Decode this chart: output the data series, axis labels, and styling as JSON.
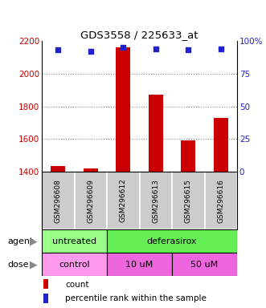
{
  "title": "GDS3558 / 225633_at",
  "samples": [
    "GSM296608",
    "GSM296609",
    "GSM296612",
    "GSM296613",
    "GSM296615",
    "GSM296616"
  ],
  "counts": [
    1435,
    1420,
    2160,
    1870,
    1590,
    1730
  ],
  "percentile_ranks": [
    93,
    92,
    95,
    94,
    93,
    94
  ],
  "ylim_left": [
    1400,
    2200
  ],
  "ylim_right": [
    0,
    100
  ],
  "right_ticks": [
    0,
    25,
    50,
    75,
    100
  ],
  "right_tick_labels": [
    "0",
    "25",
    "50",
    "75",
    "100%"
  ],
  "left_ticks": [
    1400,
    1600,
    1800,
    2000,
    2200
  ],
  "bar_color": "#cc0000",
  "dot_color": "#2222cc",
  "tick_color_left": "#cc0000",
  "tick_color_right": "#2222cc",
  "grid_color": "#888888",
  "sample_box_color": "#cccccc",
  "legend_count_color": "#cc0000",
  "legend_pct_color": "#2222cc",
  "agent_info": [
    {
      "start": 0,
      "end": 2,
      "label": "untreated",
      "color": "#99ff88"
    },
    {
      "start": 2,
      "end": 6,
      "label": "deferasirox",
      "color": "#66ee55"
    }
  ],
  "dose_info": [
    {
      "start": 0,
      "end": 2,
      "label": "control",
      "color": "#ff99ee"
    },
    {
      "start": 2,
      "end": 4,
      "label": "10 uM",
      "color": "#ee66dd"
    },
    {
      "start": 4,
      "end": 6,
      "label": "50 uM",
      "color": "#ee66dd"
    }
  ]
}
